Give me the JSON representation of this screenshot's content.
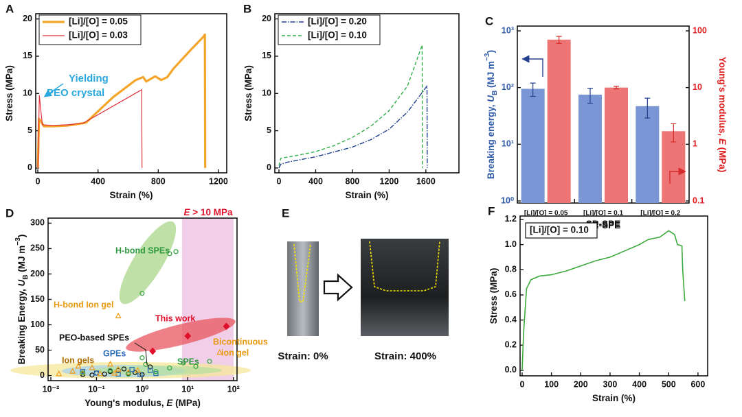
{
  "chart_data": [
    {
      "panel": "A",
      "type": "line",
      "xlabel": [
        {
          "text": "Strain (%)"
        }
      ],
      "ylabel": [
        {
          "text": "Stress (MPa)"
        }
      ],
      "xlim": [
        -14,
        1255
      ],
      "ylim": [
        -0.65,
        20.7
      ],
      "xticks": [
        0,
        400,
        800,
        1200
      ],
      "yticks": [
        0,
        5,
        10,
        15,
        20
      ],
      "legend": "upper left",
      "series": [
        {
          "name": "[Li]/[O] = 0.05",
          "color": "#f4a52a",
          "line_width": 3.2,
          "x": [
            0,
            8,
            20,
            40,
            100,
            200,
            300,
            320,
            500,
            650,
            700,
            720,
            780,
            820,
            860,
            900,
            1000,
            1100,
            1110,
            1112
          ],
          "values": [
            0,
            6.6,
            6.3,
            5.6,
            5.6,
            5.7,
            6.0,
            6.1,
            9.5,
            11.8,
            12.2,
            11.6,
            12.3,
            11.8,
            12.2,
            13.3,
            15.5,
            17.6,
            17.9,
            0
          ]
        },
        {
          "name": "[Li]/[O] = 0.03",
          "color": "#e0323c",
          "line_width": 1.2,
          "x": [
            0,
            10,
            30,
            100,
            200,
            300,
            500,
            690,
            692
          ],
          "values": [
            0,
            9.7,
            5.8,
            5.7,
            5.8,
            6.0,
            8.3,
            10.5,
            0
          ]
        }
      ],
      "annotation": [
        "Yielding",
        "PEO crystal"
      ]
    },
    {
      "panel": "B",
      "type": "line",
      "xlabel": [
        {
          "text": "Strain (%)"
        }
      ],
      "ylabel": [
        {
          "text": "Stress (MPa)"
        }
      ],
      "xlim": [
        -45,
        1960
      ],
      "ylim": [
        -0.65,
        20.7
      ],
      "xticks": [
        0,
        400,
        800,
        1200,
        1600
      ],
      "yticks": [
        0,
        5,
        10,
        15,
        20
      ],
      "legend": "upper left",
      "series": [
        {
          "name": "[Li]/[O] = 0.20",
          "color": "#1f3f8f",
          "line_width": 1.4,
          "dash": "dashdot",
          "x": [
            0,
            20,
            100,
            400,
            800,
            1000,
            1200,
            1400,
            1600,
            1612,
            1615
          ],
          "values": [
            0,
            0.5,
            0.8,
            1.5,
            2.8,
            3.8,
            5.2,
            7.5,
            10.8,
            11,
            0
          ]
        },
        {
          "name": "[Li]/[O] = 0.10",
          "color": "#2fae4a",
          "line_width": 1.4,
          "dash": "dashed",
          "x": [
            0,
            20,
            200,
            400,
            600,
            800,
            1000,
            1200,
            1400,
            1560,
            1562
          ],
          "values": [
            0.3,
            1.3,
            1.7,
            2.2,
            3.0,
            4.1,
            5.6,
            7.7,
            11,
            16.5,
            0
          ]
        }
      ]
    },
    {
      "panel": "C",
      "type": "bar",
      "log_y": true,
      "categories": [
        "[Li]/[O] = 0.05",
        "[Li]/[O] = 0.1",
        "[Li]/[O] = 0.2"
      ],
      "xlabel": [
        {
          "text": "SR-SPE"
        }
      ],
      "ylabel": [
        {
          "text": "Breaking energy, "
        },
        {
          "text": "U",
          "style": "italic"
        },
        {
          "text": "B",
          "style": "sub"
        },
        {
          "text": " (MJ m"
        },
        {
          "text": "−3",
          "style": "sup"
        },
        {
          "text": ")"
        }
      ],
      "y2label": [
        {
          "text": "Young's modulus, "
        },
        {
          "text": "E",
          "style": "italic"
        },
        {
          "text": " (MPa)"
        }
      ],
      "ylim": [
        0.92,
        1215
      ],
      "y2lim": [
        0.092,
        121.5
      ],
      "yticks": [
        {
          "value": 1,
          "label": "10⁰"
        },
        {
          "value": 10,
          "label": "10¹"
        },
        {
          "value": 100,
          "label": "10²"
        },
        {
          "value": 1000,
          "label": "10³"
        }
      ],
      "y2ticks": [
        0.1,
        1,
        10,
        100
      ],
      "ylabel_color": "#2e5aa8",
      "y2label_color": "#e02020",
      "series": [
        {
          "color": "#7b96d4",
          "values": [
            95,
            75,
            47
          ],
          "errors": [
            25,
            22,
            18
          ]
        },
        {
          "color": "#ee7575",
          "values": [
            70,
            10,
            1.7
          ],
          "errors": [
            10,
            0.5,
            0.6
          ],
          "axis": "y2"
        }
      ]
    },
    {
      "panel": "D",
      "type": "scatter",
      "log_x": true,
      "xlabel": [
        {
          "text": "Young's modulus, "
        },
        {
          "text": "E",
          "style": "italic"
        },
        {
          "text": " (MPa)"
        }
      ],
      "ylabel": [
        {
          "text": "Breaking Energy, "
        },
        {
          "text": "U",
          "style": "italic"
        },
        {
          "text": "B",
          "style": "sub"
        },
        {
          "text": " (MJ m"
        },
        {
          "text": "−3",
          "style": "sup"
        },
        {
          "text": ")"
        }
      ],
      "xlim": [
        0.0087,
        120
      ],
      "ylim": [
        -10,
        310
      ],
      "xticks": [
        {
          "value": 0.01,
          "label": "10⁻²"
        },
        {
          "value": 0.1,
          "label": "10⁻¹"
        },
        {
          "value": 1,
          "label": "10⁰"
        },
        {
          "value": 10,
          "label": "10¹"
        },
        {
          "value": 100,
          "label": "10²"
        }
      ],
      "yticks": [
        0,
        50,
        100,
        150,
        200,
        250,
        300
      ],
      "region_label": [
        {
          "text": "E",
          "style": "italic"
        },
        {
          "text": " > 10 MPa"
        }
      ],
      "series": [
        {
          "label": [
            "H-bond SPEs"
          ],
          "color": "#3aa845",
          "marker": "circle",
          "x": [
            1,
            4,
            5.5
          ],
          "values": [
            162,
            240,
            244
          ]
        },
        {
          "label": [
            "H-bond Ion gel"
          ],
          "color": "#f0a020",
          "marker": "triangle",
          "x": [
            0.3
          ],
          "values": [
            117
          ]
        },
        {
          "label": [
            "This work"
          ],
          "color": "#e0102a",
          "marker": "diamond",
          "x": [
            1.7,
            10,
            70
          ],
          "values": [
            48,
            78,
            97
          ]
        },
        {
          "label": [
            "Bicontinuous",
            "ion gel"
          ],
          "color": "#f0a020",
          "marker": "triangle",
          "x": [
            50
          ],
          "values": [
            45
          ]
        },
        {
          "label": [
            "PEO-based SPEs"
          ],
          "color": "#111111",
          "marker": "circle",
          "x": [
            0.05,
            0.1,
            0.15,
            0.2,
            0.3,
            0.5,
            0.7,
            1,
            1.5,
            0.08,
            0.4
          ],
          "values": [
            2,
            5,
            3,
            8,
            10,
            4,
            6,
            2,
            17,
            1,
            13
          ]
        },
        {
          "label": [
            "GPEs"
          ],
          "color": "#2f6fb5",
          "marker": "square",
          "x": [
            0.1,
            0.3,
            0.6,
            0.9,
            1.5,
            0.05,
            2
          ],
          "values": [
            5,
            3,
            12,
            2,
            10,
            8,
            4
          ]
        },
        {
          "label": [
            "Ion gels"
          ],
          "color": "#f0a020",
          "marker": "triangle",
          "x": [
            0.015,
            0.03,
            0.05,
            0.08,
            0.12,
            0.2,
            0.3,
            0.5,
            0.8,
            0.04,
            0.25
          ],
          "values": [
            3,
            8,
            5,
            15,
            3,
            22,
            12,
            6,
            10,
            18,
            4
          ]
        },
        {
          "label": [
            "SPEs"
          ],
          "color": "#3aa845",
          "marker": "circle",
          "x": [
            0.05,
            0.2,
            0.5,
            1,
            2,
            4,
            8,
            15,
            30,
            1.2
          ],
          "values": [
            5,
            10,
            3,
            35,
            8,
            15,
            25,
            18,
            28,
            22
          ]
        }
      ]
    },
    {
      "panel": "F",
      "type": "line",
      "xlabel": [
        {
          "text": "Strain (%)"
        }
      ],
      "ylabel": [
        {
          "text": "Stress (MPa)"
        }
      ],
      "xlim": [
        -7,
        633
      ],
      "ylim": [
        -0.044,
        1.227
      ],
      "xticks": [
        0,
        100,
        200,
        300,
        400,
        500,
        600
      ],
      "yticks": [
        {
          "value": 0,
          "label": "0.0"
        },
        0.2,
        0.4,
        0.6,
        0.8,
        {
          "value": 1,
          "label": "1.0"
        },
        1.2
      ],
      "legend": "upper left boxed",
      "series": [
        {
          "name": "[Li]/[O] = 0.10",
          "color": "#3aaa3a",
          "line_width": 1.6,
          "x": [
            0,
            5,
            15,
            30,
            60,
            100,
            150,
            200,
            250,
            300,
            350,
            400,
            430,
            470,
            500,
            520,
            530,
            545,
            548,
            555
          ],
          "values": [
            0,
            0.3,
            0.65,
            0.72,
            0.75,
            0.76,
            0.79,
            0.83,
            0.87,
            0.9,
            0.95,
            1.0,
            1.04,
            1.06,
            1.11,
            1.08,
            1.0,
            0.99,
            0.8,
            0.55
          ]
        }
      ]
    }
  ],
  "photo_panel": {
    "panel": "E",
    "captions": [
      "Strain: 0%",
      "Strain: 400%"
    ]
  }
}
